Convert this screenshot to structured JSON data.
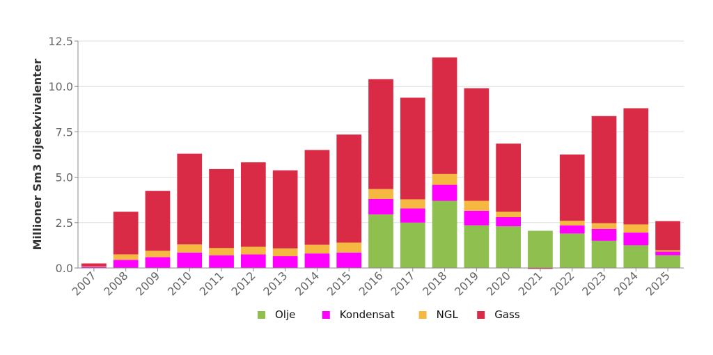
{
  "chart_data": {
    "type": "bar",
    "stacked": true,
    "title": "",
    "xlabel": "",
    "ylabel": "Millioner Sm3 oljeekvivalenter",
    "ylim": [
      0,
      12.5
    ],
    "yticks": [
      "0.0",
      "2.5",
      "5.0",
      "7.5",
      "10.0",
      "12.5"
    ],
    "grid": true,
    "legend_position": "bottom",
    "categories": [
      "2007",
      "2008",
      "2009",
      "2010",
      "2011",
      "2012",
      "2013",
      "2014",
      "2015",
      "2016",
      "2017",
      "2018",
      "2019",
      "2020",
      "2021",
      "2022",
      "2023",
      "2024",
      "2025"
    ],
    "series": [
      {
        "name": "Olje",
        "color": "#8fbf4f",
        "values": [
          0,
          0,
          0,
          0,
          0,
          0,
          0,
          0,
          0,
          2.95,
          2.5,
          3.7,
          2.35,
          2.3,
          2.05,
          1.9,
          1.5,
          1.25,
          0.7
        ]
      },
      {
        "name": "Kondensat",
        "color": "#ff00ff",
        "values": [
          0.08,
          0.45,
          0.6,
          0.85,
          0.7,
          0.75,
          0.65,
          0.8,
          0.85,
          0.85,
          0.78,
          0.88,
          0.8,
          0.5,
          0,
          0.45,
          0.65,
          0.7,
          0.2
        ]
      },
      {
        "name": "NGL",
        "color": "#f5b942",
        "values": [
          0.02,
          0.3,
          0.35,
          0.45,
          0.4,
          0.42,
          0.43,
          0.48,
          0.55,
          0.55,
          0.5,
          0.6,
          0.55,
          0.3,
          0,
          0.25,
          0.32,
          0.45,
          0.08
        ]
      },
      {
        "name": "Gass",
        "color": "#d92b45",
        "values": [
          0.15,
          2.35,
          3.3,
          5.0,
          4.35,
          4.65,
          4.3,
          5.22,
          5.95,
          6.05,
          5.6,
          6.42,
          6.2,
          3.75,
          -0.05,
          3.65,
          5.9,
          6.4,
          1.6
        ]
      }
    ]
  }
}
